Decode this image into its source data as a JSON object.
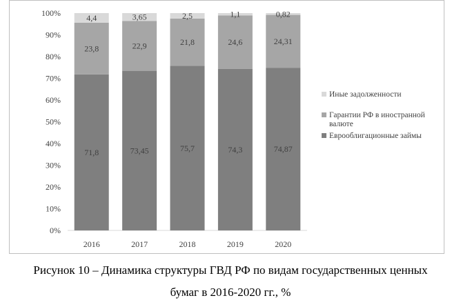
{
  "chart_data": {
    "type": "bar",
    "stacked": true,
    "categories": [
      "2016",
      "2017",
      "2018",
      "2019",
      "2020"
    ],
    "series": [
      {
        "name": "Еврооблигационные займы",
        "values": [
          "71,8",
          "73,45",
          "75,7",
          "74,3",
          "74,87"
        ],
        "color": "#7f7f7f"
      },
      {
        "name": "Гарантии РФ в иностранной валюте",
        "values": [
          "23,8",
          "22,9",
          "21,8",
          "24,6",
          "24,31"
        ],
        "color": "#a6a6a6"
      },
      {
        "name": "Иные задолженности",
        "values": [
          "4,4",
          "3,65",
          "2,5",
          "1,1",
          "0,82"
        ],
        "color": "#d9d9d9"
      }
    ],
    "y_ticks": [
      "0%",
      "10%",
      "20%",
      "30%",
      "40%",
      "50%",
      "60%",
      "70%",
      "80%",
      "90%",
      "100%"
    ],
    "ylim": [
      0,
      100
    ],
    "legend_position": "right",
    "grid": false
  },
  "caption": {
    "line1": "Рисунок 10 – Динамика структуры ГВД РФ по видам государственных ценных",
    "line2": "бумаг в 2016-2020 гг., %"
  }
}
